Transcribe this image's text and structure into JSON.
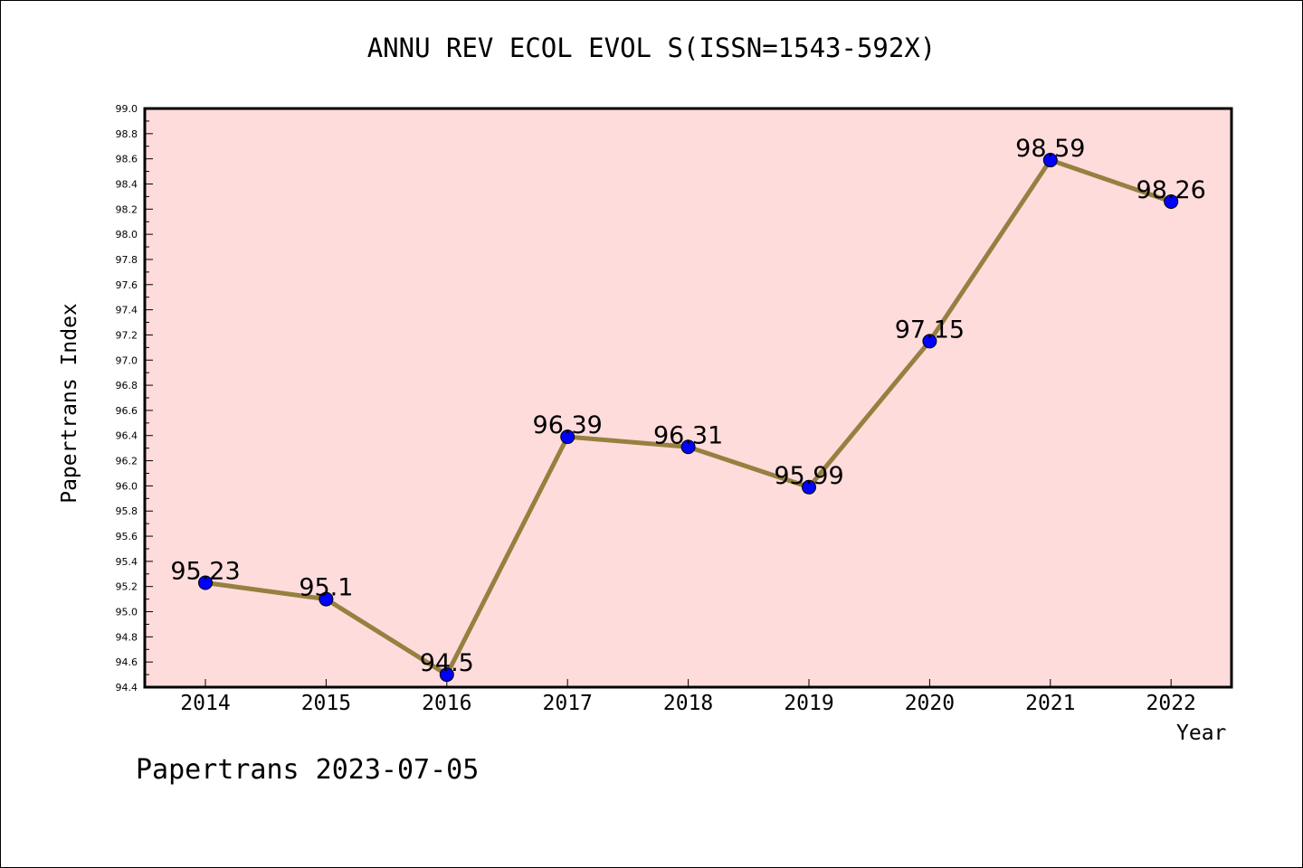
{
  "chart_data": {
    "type": "line",
    "title": "ANNU REV ECOL EVOL S(ISSN=1543-592X)",
    "xlabel": "Year",
    "ylabel": "Papertrans Index",
    "categories": [
      "2014",
      "2015",
      "2016",
      "2017",
      "2018",
      "2019",
      "2020",
      "2021",
      "2022"
    ],
    "values": [
      95.23,
      95.1,
      94.5,
      96.39,
      96.31,
      95.99,
      97.15,
      98.59,
      98.26
    ],
    "data_labels": [
      "95.23",
      "95.1",
      "94.5",
      "96.39",
      "96.31",
      "95.99",
      "97.15",
      "98.59",
      "98.26"
    ],
    "ylim": [
      94.4,
      99.0
    ],
    "yticks": [
      "94.4",
      "94.6",
      "94.8",
      "95.0",
      "95.2",
      "95.4",
      "95.6",
      "95.8",
      "96.0",
      "96.2",
      "96.4",
      "96.6",
      "96.8",
      "97.0",
      "97.2",
      "97.4",
      "97.6",
      "97.8",
      "98.0",
      "98.2",
      "98.4",
      "98.6",
      "98.8",
      "99.0"
    ],
    "grid": false,
    "colors": {
      "plot_background": "#FFDCDC",
      "line": "#968040",
      "marker": "#0000FF"
    }
  },
  "footer": "Papertrans 2023-07-05"
}
